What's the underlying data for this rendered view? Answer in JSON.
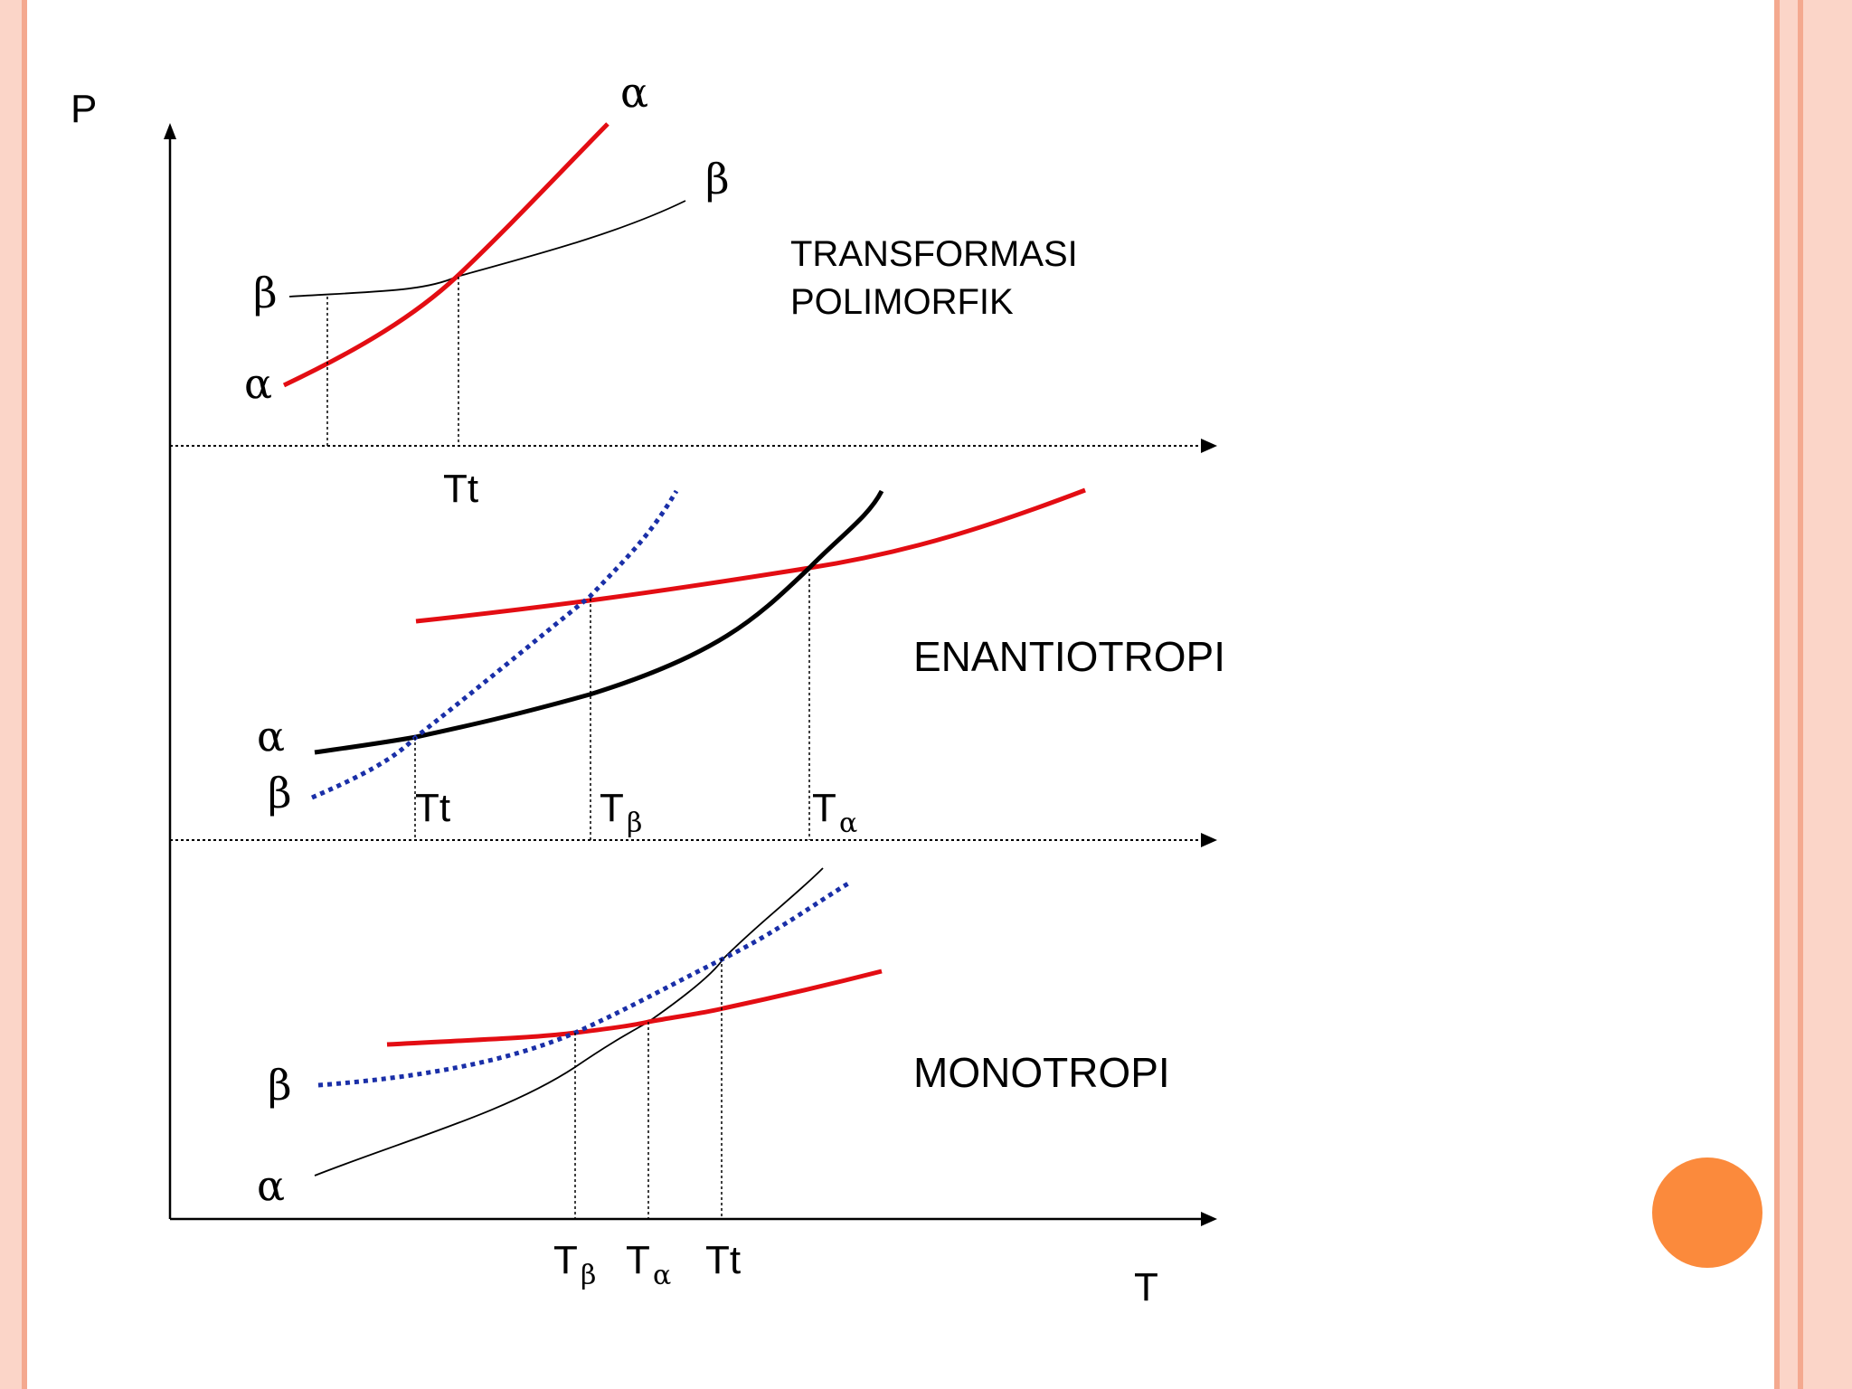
{
  "colors": {
    "alpha_curve": "#e30d13",
    "beta_dotted": "#1a2fa8",
    "black": "#000000",
    "frame_light": "#fbd5c8",
    "frame_dark": "#f4a98f",
    "accent_circle": "#fb8a3c"
  },
  "axes": {
    "y_label": "P",
    "x_label": "T"
  },
  "panels": {
    "top": {
      "title_line1": "TRANSFORMASI",
      "title_line2": "POLIMORFIK",
      "curve_alpha_end": "α",
      "curve_beta_end": "β",
      "left_beta": "β",
      "left_alpha": "α",
      "tick_tt": "Tt"
    },
    "middle": {
      "title": "ENANTIOTROPI",
      "left_alpha": "α",
      "left_beta": "β",
      "tick_tt": "Tt",
      "tick_tbeta_main": "T",
      "tick_tbeta_sub": "β",
      "tick_talpha_main": "T",
      "tick_talpha_sub": "α"
    },
    "bottom": {
      "title": "MONOTROPI",
      "left_beta": "β",
      "left_alpha": "α",
      "tick_tbeta_main": "T",
      "tick_tbeta_sub": "β",
      "tick_talpha_main": "T",
      "tick_talpha_sub": "α",
      "tick_tt": "Tt"
    }
  }
}
